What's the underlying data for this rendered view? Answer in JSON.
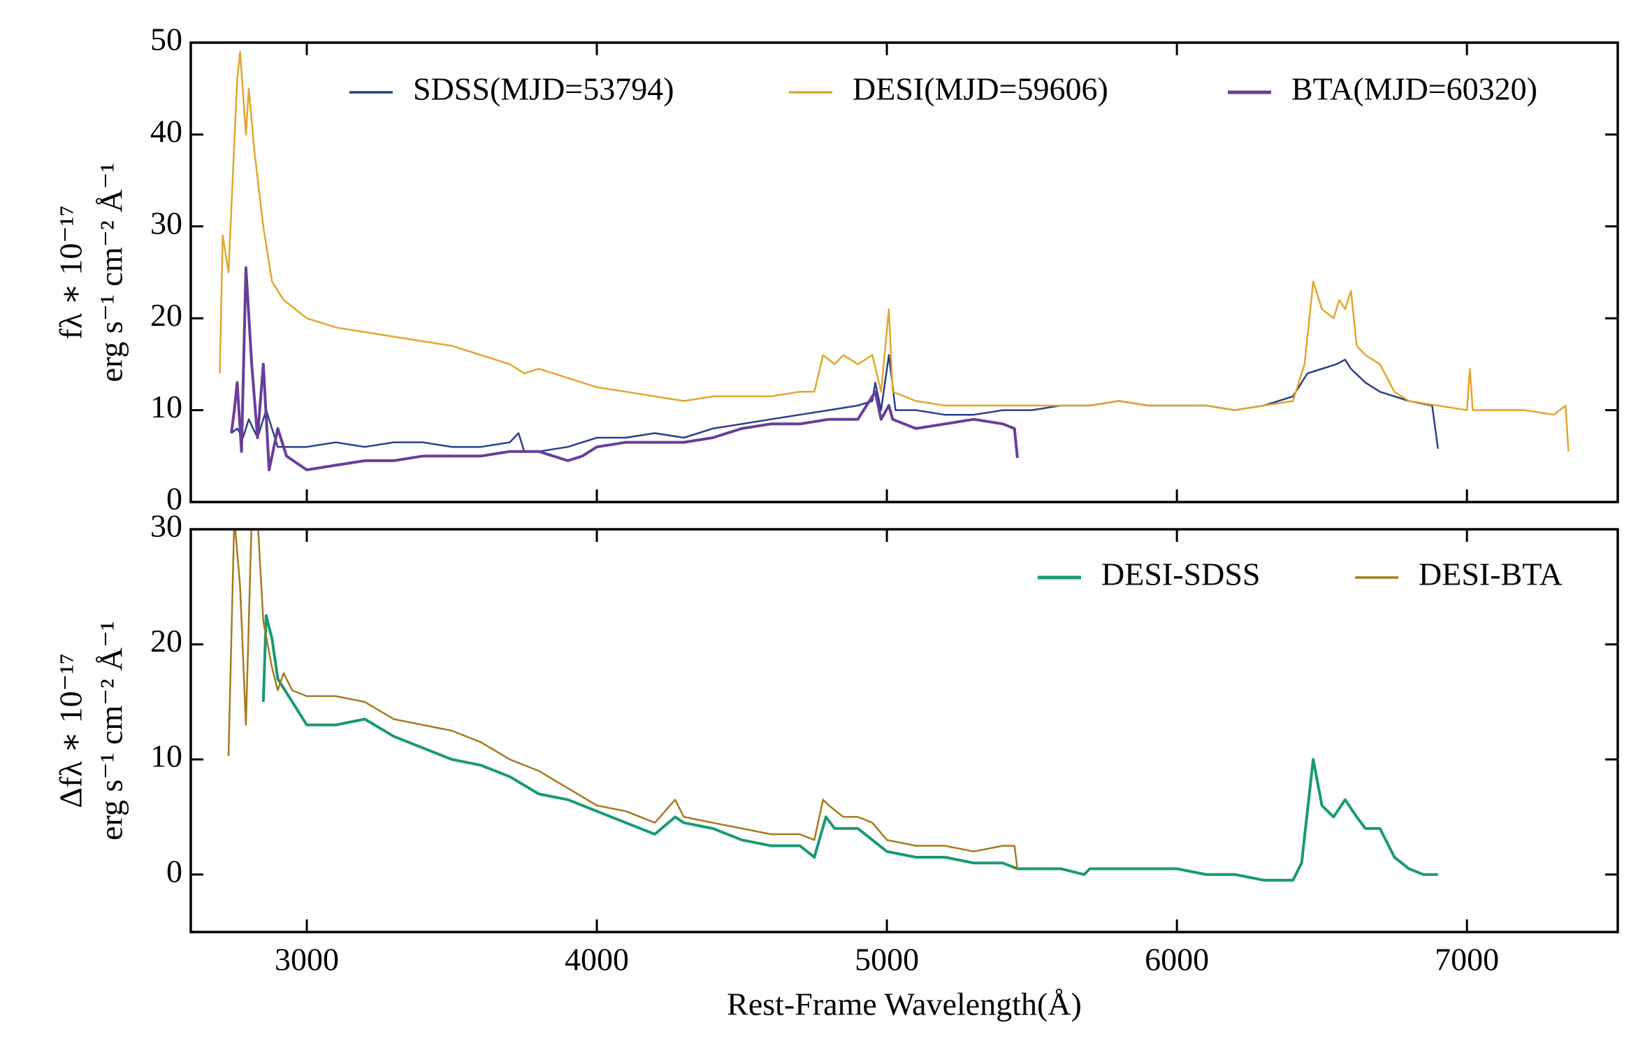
{
  "chart_data": [
    {
      "type": "line",
      "ylabel": [
        "fλ ∗ 10⁻¹⁷",
        "erg s⁻¹ cm⁻² Å⁻¹"
      ],
      "xlim": [
        2600,
        7520
      ],
      "xticks": [
        3000,
        4000,
        5000,
        6000,
        7000
      ],
      "ylim": [
        0,
        50
      ],
      "yticks": [
        0,
        10,
        20,
        30,
        40,
        50
      ],
      "legend": "upper right",
      "series": [
        {
          "name": "SDSS(MJD=53794)",
          "color": "#2b3f8a",
          "linewidth": 2.5,
          "x": [
            2740,
            2760,
            2780,
            2800,
            2830,
            2860,
            2900,
            3000,
            3100,
            3200,
            3300,
            3400,
            3500,
            3600,
            3700,
            3730,
            3750,
            3800,
            3900,
            4000,
            4100,
            4200,
            4300,
            4400,
            4500,
            4600,
            4700,
            4800,
            4900,
            4950,
            4960,
            4980,
            5007,
            5030,
            5100,
            5200,
            5300,
            5400,
            5500,
            5600,
            5700,
            5800,
            5900,
            6000,
            6100,
            6200,
            6300,
            6400,
            6450,
            6500,
            6550,
            6580,
            6600,
            6650,
            6700,
            6800,
            6880,
            6900
          ],
          "values": [
            7.5,
            8,
            7,
            9,
            7,
            10,
            6,
            6,
            6.5,
            6,
            6.5,
            6.5,
            6,
            6,
            6.5,
            7.5,
            5.5,
            5.5,
            6,
            7,
            7,
            7.5,
            7,
            8,
            8.5,
            9,
            9.5,
            10,
            10.5,
            11,
            13,
            10,
            16,
            10,
            10,
            9.5,
            9.5,
            10,
            10,
            10.5,
            10.5,
            11,
            10.5,
            10.5,
            10.5,
            10,
            10.5,
            11.5,
            14,
            14.5,
            15,
            15.5,
            14.5,
            13,
            12,
            11,
            10.5,
            5.8
          ]
        },
        {
          "name": "DESI(MJD=59606)",
          "color": "#e0a82a",
          "linewidth": 2.5,
          "x": [
            2700,
            2710,
            2730,
            2760,
            2770,
            2790,
            2800,
            2820,
            2850,
            2880,
            2920,
            3000,
            3100,
            3200,
            3300,
            3400,
            3500,
            3600,
            3700,
            3750,
            3800,
            3900,
            4000,
            4100,
            4200,
            4300,
            4400,
            4500,
            4600,
            4700,
            4750,
            4780,
            4820,
            4850,
            4900,
            4950,
            4980,
            5007,
            5020,
            5100,
            5200,
            5300,
            5400,
            5500,
            5600,
            5700,
            5800,
            5900,
            6000,
            6100,
            6200,
            6300,
            6400,
            6440,
            6470,
            6500,
            6540,
            6560,
            6580,
            6600,
            6620,
            6650,
            6700,
            6750,
            6800,
            6900,
            7000,
            7010,
            7020,
            7100,
            7200,
            7300,
            7340,
            7350
          ],
          "values": [
            14,
            29,
            25,
            46,
            49,
            40,
            45,
            38,
            30,
            24,
            22,
            20,
            19,
            18.5,
            18,
            17.5,
            17,
            16,
            15,
            14,
            14.5,
            13.5,
            12.5,
            12,
            11.5,
            11,
            11.5,
            11.5,
            11.5,
            12,
            12,
            16,
            15,
            16,
            15,
            16,
            12,
            21,
            12,
            11,
            10.5,
            10.5,
            10.5,
            10.5,
            10.5,
            10.5,
            11,
            10.5,
            10.5,
            10.5,
            10,
            10.5,
            11,
            15,
            24,
            21,
            20,
            22,
            21,
            23,
            17,
            16,
            15,
            12,
            11,
            10.5,
            10,
            14.5,
            10,
            10,
            10,
            9.5,
            10.5,
            5.5
          ]
        },
        {
          "name": "BTA(MJD=60320)",
          "color": "#6a3d9a",
          "linewidth": 4,
          "x": [
            2740,
            2750,
            2760,
            2775,
            2790,
            2810,
            2830,
            2850,
            2870,
            2900,
            2930,
            3000,
            3100,
            3200,
            3300,
            3400,
            3500,
            3600,
            3700,
            3800,
            3900,
            3950,
            4000,
            4100,
            4200,
            4300,
            4400,
            4500,
            4600,
            4700,
            4800,
            4900,
            4960,
            4980,
            5007,
            5020,
            5100,
            5200,
            5300,
            5400,
            5440,
            5450
          ],
          "values": [
            7.5,
            10,
            13,
            5.5,
            25.5,
            15,
            7,
            15,
            3.5,
            8,
            5,
            3.5,
            4,
            4.5,
            4.5,
            5,
            5,
            5,
            5.5,
            5.5,
            4.5,
            5,
            6,
            6.5,
            6.5,
            6.5,
            7,
            8,
            8.5,
            8.5,
            9,
            9,
            12,
            9,
            10.5,
            9,
            8,
            8.5,
            9,
            8.5,
            8,
            4.8
          ]
        }
      ]
    },
    {
      "type": "line",
      "ylabel": [
        "Δfλ ∗ 10⁻¹⁷",
        "erg s⁻¹ cm⁻² Å⁻¹"
      ],
      "xlabel": "Rest-Frame Wavelength(Å)",
      "xlim": [
        2600,
        7520
      ],
      "xticks": [
        3000,
        4000,
        5000,
        6000,
        7000
      ],
      "ylim": [
        -5,
        30
      ],
      "yticks": [
        0,
        10,
        20,
        30
      ],
      "legend": "upper right",
      "series": [
        {
          "name": "DESI-SDSS",
          "color": "#1a9a74",
          "linewidth": 4,
          "x": [
            2850,
            2860,
            2880,
            2900,
            2950,
            3000,
            3100,
            3200,
            3300,
            3400,
            3500,
            3600,
            3700,
            3800,
            3900,
            4000,
            4100,
            4200,
            4270,
            4300,
            4400,
            4500,
            4600,
            4700,
            4750,
            4790,
            4820,
            4900,
            4950,
            5000,
            5100,
            5200,
            5300,
            5400,
            5450,
            5500,
            5600,
            5680,
            5700,
            5800,
            5900,
            6000,
            6100,
            6200,
            6300,
            6400,
            6430,
            6470,
            6500,
            6540,
            6580,
            6620,
            6650,
            6700,
            6750,
            6800,
            6850,
            6900
          ],
          "values": [
            15,
            22.5,
            20.5,
            17,
            15,
            13,
            13,
            13.5,
            12,
            11,
            10,
            9.5,
            8.5,
            7,
            6.5,
            5.5,
            4.5,
            3.5,
            5,
            4.5,
            4,
            3,
            2.5,
            2.5,
            1.5,
            5,
            4,
            4,
            3,
            2,
            1.5,
            1.5,
            1,
            1,
            0.5,
            0.5,
            0.5,
            0,
            0.5,
            0.5,
            0.5,
            0.5,
            0,
            0,
            -0.5,
            -0.5,
            1,
            10,
            6,
            5,
            6.5,
            5,
            4,
            4,
            1.5,
            0.5,
            0,
            0
          ]
        },
        {
          "name": "DESI-BTA",
          "color": "#a67a1e",
          "linewidth": 2.5,
          "x": [
            2730,
            2750,
            2770,
            2790,
            2810,
            2830,
            2850,
            2880,
            2900,
            2920,
            2950,
            3000,
            3100,
            3200,
            3300,
            3400,
            3500,
            3600,
            3700,
            3800,
            3900,
            4000,
            4100,
            4200,
            4270,
            4300,
            4400,
            4500,
            4600,
            4700,
            4750,
            4780,
            4800,
            4850,
            4900,
            4950,
            5000,
            5100,
            5200,
            5300,
            5400,
            5440,
            5450
          ],
          "values": [
            10.3,
            31,
            25,
            13,
            31,
            31,
            22,
            18,
            16,
            17.5,
            16,
            15.5,
            15.5,
            15,
            13.5,
            13,
            12.5,
            11.5,
            10,
            9,
            7.5,
            6,
            5.5,
            4.5,
            6.5,
            5,
            4.5,
            4,
            3.5,
            3.5,
            3,
            6.5,
            6,
            5,
            5,
            4.5,
            3,
            2.5,
            2.5,
            2,
            2.5,
            2.5,
            0.5
          ]
        }
      ]
    }
  ]
}
